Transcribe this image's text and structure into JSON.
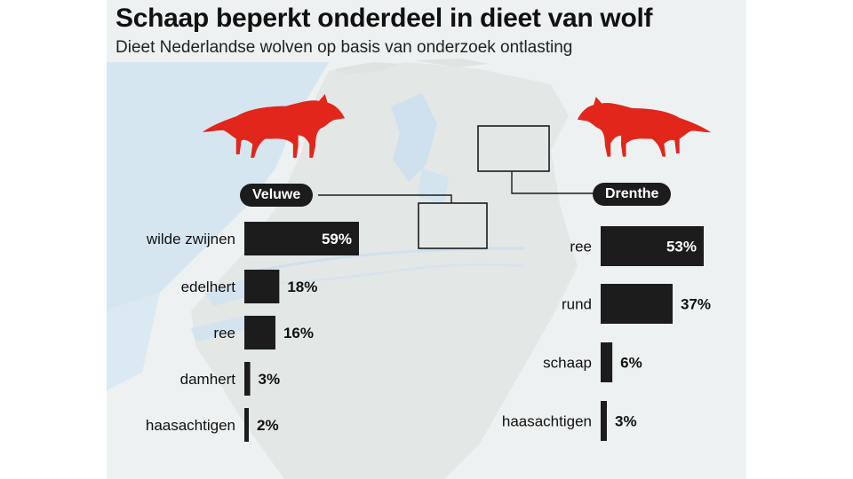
{
  "title": "Schaap beperkt onderdeel in dieet van wolf",
  "subtitle": "Dieet Nederlandse wolven op basis van onderzoek ontlasting",
  "colors": {
    "wolf": "#e1261c",
    "bar": "#1c1c1c",
    "map_land": "#e4e8e7",
    "map_water": "#cfe2ef"
  },
  "icons": {
    "left": "wolf-silhouette-icon",
    "right": "wolf-silhouette-icon"
  },
  "chart_data": [
    {
      "type": "bar",
      "orientation": "horizontal",
      "region": "Veluwe",
      "categories": [
        "wilde zwijnen",
        "edelhert",
        "ree",
        "damhert",
        "haasachtigen"
      ],
      "values": [
        59,
        18,
        16,
        3,
        2
      ],
      "value_labels": [
        "59%",
        "18%",
        "16%",
        "3%",
        "2%"
      ],
      "unit": "%"
    },
    {
      "type": "bar",
      "orientation": "horizontal",
      "region": "Drenthe",
      "categories": [
        "ree",
        "rund",
        "schaap",
        "haasachtigen"
      ],
      "values": [
        53,
        37,
        6,
        3
      ],
      "value_labels": [
        "53%",
        "37%",
        "6%",
        "3%"
      ],
      "unit": "%"
    }
  ]
}
